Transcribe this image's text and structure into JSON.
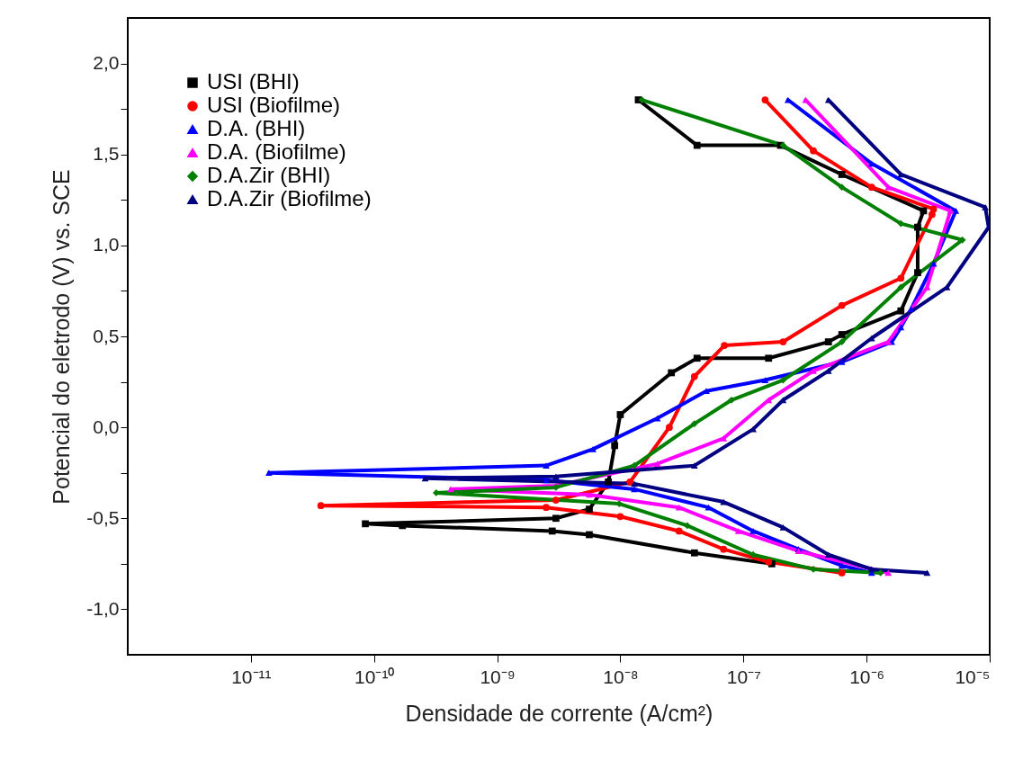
{
  "chart_data": {
    "type": "line",
    "xlabel": "Densidade de corrente (A/cm²)",
    "ylabel": "Potencial do eletrodo (V) vs. SCE",
    "log": "x",
    "grid": false,
    "legend": "top left",
    "line_style": "solid",
    "xlim": [
      1e-12,
      1e-05
    ],
    "ylim": [
      -1.25,
      2.25
    ],
    "xticks": [
      {
        "value": 1e-11,
        "label": "10⁻¹¹"
      },
      {
        "value": 1e-10,
        "label": "10⁻¹⁰"
      },
      {
        "value": 1e-09,
        "label": "10⁻⁹"
      },
      {
        "value": 1e-08,
        "label": "10⁻⁸"
      },
      {
        "value": 1e-07,
        "label": "10⁻⁷"
      },
      {
        "value": 1e-06,
        "label": "10⁻⁶"
      },
      {
        "value": 1e-05,
        "label": "10⁻⁵"
      }
    ],
    "yticks": [
      {
        "value": -1,
        "label": "-1,0"
      },
      {
        "value": -0.75,
        "label": null
      },
      {
        "value": -0.5,
        "label": "-0,5"
      },
      {
        "value": -0.25,
        "label": null
      },
      {
        "value": 0,
        "label": "0,0"
      },
      {
        "value": 0.25,
        "label": null
      },
      {
        "value": 0.5,
        "label": "0,5"
      },
      {
        "value": 0.75,
        "label": null
      },
      {
        "value": 1,
        "label": "1,0"
      },
      {
        "value": 1.25,
        "label": null
      },
      {
        "value": 1.5,
        "label": "1,5"
      },
      {
        "value": 1.75,
        "label": null
      },
      {
        "value": 2,
        "label": "2,0"
      }
    ],
    "series": [
      {
        "name": "USI (BHI)",
        "color": "#000000",
        "marker": "square",
        "x": [
          1.7e-07,
          4e-08,
          5.6e-09,
          2.8e-09,
          1.7e-10,
          8.5e-11,
          3e-09,
          5.6e-09,
          8e-09,
          9e-09,
          1e-08,
          2.6e-08,
          4.2e-08,
          1.6e-07,
          4.9e-07,
          6.3e-07,
          1.9e-06,
          2.6e-06,
          2.6e-06,
          2.9e-06,
          6.3e-07,
          2e-07,
          4.2e-08,
          1.4e-08
        ],
        "values": [
          -0.75,
          -0.69,
          -0.59,
          -0.57,
          -0.54,
          -0.53,
          -0.5,
          -0.45,
          -0.3,
          -0.1,
          0.07,
          0.3,
          0.38,
          0.38,
          0.47,
          0.51,
          0.64,
          0.85,
          1.1,
          1.19,
          1.39,
          1.55,
          1.55,
          1.8
        ]
      },
      {
        "name": "USI (Biofilme)",
        "color": "#ff0000",
        "marker": "circle",
        "x": [
          6.3e-07,
          1.6e-07,
          6.9e-08,
          3e-08,
          1e-08,
          2.5e-09,
          3.7e-11,
          3e-09,
          1.2e-08,
          2.5e-08,
          4e-08,
          7e-08,
          2.1e-07,
          6.3e-07,
          1.9e-06,
          3.4e-06,
          3.5e-06,
          1.1e-06,
          3.7e-07,
          1.5e-07
        ],
        "values": [
          -0.8,
          -0.74,
          -0.67,
          -0.57,
          -0.49,
          -0.44,
          -0.43,
          -0.4,
          -0.3,
          0.0,
          0.28,
          0.45,
          0.47,
          0.67,
          0.82,
          1.17,
          1.2,
          1.32,
          1.52,
          1.8
        ]
      },
      {
        "name": "D.A. (BHI)",
        "color": "#0000ff",
        "marker": "triangle",
        "x": [
          1.1e-06,
          6.3e-07,
          2.8e-07,
          1.2e-07,
          5.2e-08,
          1.3e-08,
          2.5e-09,
          1.4e-11,
          2.5e-09,
          6e-09,
          2e-08,
          5e-08,
          1.5e-07,
          6.3e-07,
          1.6e-06,
          1.9e-06,
          2.3e-06,
          3.5e-06,
          5.3e-06,
          1.1e-06,
          2.3e-07
        ],
        "values": [
          -0.8,
          -0.76,
          -0.67,
          -0.57,
          -0.44,
          -0.34,
          -0.29,
          -0.25,
          -0.21,
          -0.12,
          0.05,
          0.2,
          0.26,
          0.36,
          0.47,
          0.55,
          0.65,
          0.9,
          1.19,
          1.45,
          1.8
        ]
      },
      {
        "name": "D.A. (Biofilme)",
        "color": "#ff00ff",
        "marker": "triangle",
        "x": [
          1.5e-06,
          2.8e-07,
          9.1e-08,
          3e-08,
          5.6e-09,
          4.2e-10,
          3e-09,
          2e-08,
          6.9e-08,
          1.6e-07,
          3.7e-07,
          1.5e-06,
          3.1e-06,
          4.8e-06,
          1.5e-06,
          3.2e-07
        ],
        "values": [
          -0.8,
          -0.68,
          -0.57,
          -0.44,
          -0.37,
          -0.34,
          -0.32,
          -0.2,
          -0.06,
          0.15,
          0.31,
          0.47,
          0.77,
          1.19,
          1.32,
          1.8
        ]
      },
      {
        "name": "D.A.Zir (BHI)",
        "color": "#008000",
        "marker": "diamond",
        "x": [
          1.3e-06,
          3.7e-07,
          1.2e-07,
          3.5e-08,
          9.8e-09,
          3.2e-10,
          3e-09,
          1.3e-08,
          4e-08,
          8e-08,
          2.1e-07,
          6.3e-07,
          1.9e-06,
          6e-06,
          1.9e-06,
          6.3e-07,
          2.1e-07,
          1.5e-08
        ],
        "values": [
          -0.8,
          -0.78,
          -0.7,
          -0.54,
          -0.42,
          -0.36,
          -0.33,
          -0.21,
          0.02,
          0.15,
          0.26,
          0.47,
          0.77,
          1.03,
          1.12,
          1.32,
          1.55,
          1.8
        ]
      },
      {
        "name": "D.A.Zir (Biofilme)",
        "color": "#000080",
        "marker": "triangle",
        "x": [
          3.1e-06,
          1.1e-06,
          4.9e-07,
          2.1e-07,
          6.9e-08,
          1.3e-08,
          2.6e-10,
          3e-09,
          4e-08,
          1.2e-07,
          2.1e-07,
          4.9e-07,
          1.1e-06,
          4.5e-06,
          9.8e-06,
          9.2e-06,
          1.9e-06,
          4.9e-07
        ],
        "values": [
          -0.8,
          -0.78,
          -0.7,
          -0.55,
          -0.41,
          -0.31,
          -0.28,
          -0.27,
          -0.21,
          -0.01,
          0.15,
          0.31,
          0.49,
          0.77,
          1.1,
          1.21,
          1.39,
          1.8
        ]
      }
    ]
  }
}
